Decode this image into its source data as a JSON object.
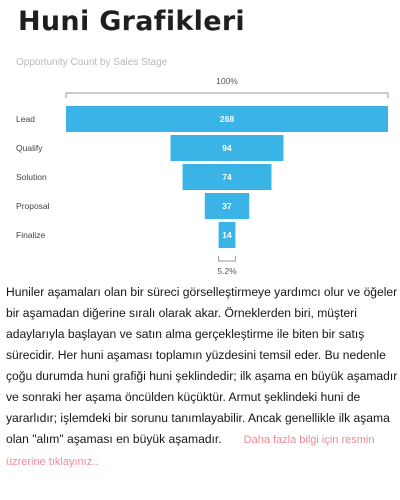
{
  "page": {
    "title": "Huni Grafikleri"
  },
  "chart_data": {
    "type": "funnel",
    "subtitle": "Opportunity Count by Sales Stage",
    "top_label": "100%",
    "bottom_label": "5.2%",
    "categories": [
      "Lead",
      "Qualify",
      "Solution",
      "Proposal",
      "Finalize"
    ],
    "values": [
      268,
      94,
      74,
      37,
      14
    ],
    "colors": {
      "bar": "#3ab4e6",
      "bar_text": "#ffffff",
      "label": "#444444",
      "axis": "#9a9a9a"
    }
  },
  "description": {
    "text": "Huniler aşamaları olan bir süreci görselleştirmeye yardımcı olur ve öğeler bir aşamadan diğerine sıralı olarak akar. Örneklerden biri, müşteri adaylarıyla başlayan ve satın alma gerçekleştirme ile biten bir satış sürecidir. Her huni aşaması toplamın yüzdesini temsil eder. Bu nedenle çoğu durumda huni grafiği huni şeklindedir; ilk aşama en büyük aşamadır ve sonraki her aşama öncülden küçüktür. Armut şeklindeki huni de yararlıdır; işlemdeki bir sorunu tanımlayabilir. Ancak genellikle ilk aşama olan \"alım\" aşaması en büyük aşamadır.",
    "more_link": "Daha fazla bilgi için resmin üzrerine tıklayınız.."
  }
}
